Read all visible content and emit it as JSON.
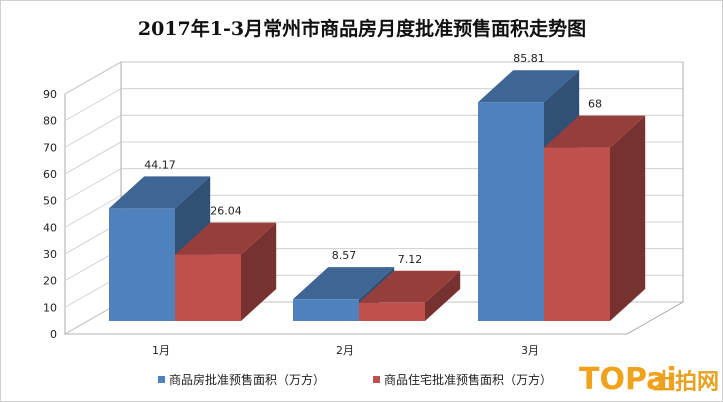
{
  "chart_data": {
    "type": "bar",
    "title": "2017年1-3月常州市商品房月度批准预售面积走势图",
    "categories": [
      "1月",
      "2月",
      "3月"
    ],
    "series": [
      {
        "name": "商品房批准预售面积（万方）",
        "values": [
          44.17,
          8.57,
          85.81
        ],
        "value_labels": [
          "44.17",
          "8.57",
          "85.81"
        ],
        "color": "#4f81bd"
      },
      {
        "name": "商品住宅批准预售面积（万方）",
        "values": [
          26.04,
          7.12,
          68
        ],
        "value_labels": [
          "26.04",
          "7.12",
          "68"
        ],
        "color": "#c0504d"
      }
    ],
    "ylim": [
      0,
      90
    ],
    "yticks": [
      0,
      10,
      20,
      30,
      40,
      50,
      60,
      70,
      80,
      90
    ],
    "ytick_labels": [
      "0",
      "10",
      "20",
      "30",
      "40",
      "50",
      "60",
      "70",
      "80",
      "90"
    ],
    "grid": true,
    "legend_position": "bottom",
    "style": "3d-clustered-column"
  },
  "watermark": {
    "logo_text": "TOPai",
    "cn_text": "土拍网"
  },
  "colors": {
    "wall": "#ffffff",
    "grid": "#c8c8c8",
    "axis": "#9a9a9a"
  }
}
